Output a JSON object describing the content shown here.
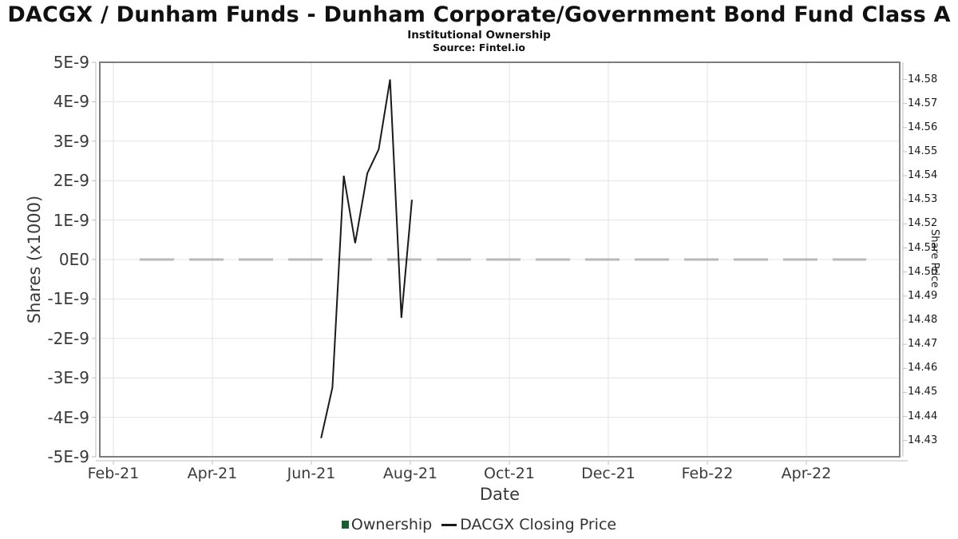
{
  "header": {
    "title": "DACGX / Dunham Funds - Dunham Corporate/Government Bond Fund Class A",
    "subtitle": "Institutional Ownership",
    "source": "Source: Fintel.io"
  },
  "chart_data": {
    "type": "line",
    "title": "DACGX / Dunham Funds - Dunham Corporate/Government Bond Fund Class A",
    "subtitle": "Institutional Ownership",
    "x_axis": {
      "label": "Date",
      "ticks": [
        {
          "date": "2021-02-01",
          "label": "Feb-21"
        },
        {
          "date": "2021-04-01",
          "label": "Apr-21"
        },
        {
          "date": "2021-06-01",
          "label": "Jun-21"
        },
        {
          "date": "2021-08-01",
          "label": "Aug-21"
        },
        {
          "date": "2021-10-01",
          "label": "Oct-21"
        },
        {
          "date": "2021-12-01",
          "label": "Dec-21"
        },
        {
          "date": "2022-02-01",
          "label": "Feb-22"
        },
        {
          "date": "2022-04-01",
          "label": "Apr-22"
        }
      ]
    },
    "left_axis": {
      "label": "Shares (x1000)",
      "tick_labels": [
        "5E-9",
        "4E-9",
        "3E-9",
        "2E-9",
        "1E-9",
        "0E0",
        "-1E-9",
        "-2E-9",
        "-3E-9",
        "-4E-9",
        "-5E-9"
      ],
      "range": [
        -5e-09,
        5e-09
      ],
      "grid": true
    },
    "right_axis": {
      "label": "Share Price",
      "tick_labels": [
        "14.58",
        "14.57",
        "14.56",
        "14.55",
        "14.54",
        "14.53",
        "14.52",
        "14.51",
        "14.50",
        "14.49",
        "14.48",
        "14.47",
        "14.46",
        "14.45",
        "14.44",
        "14.43"
      ],
      "range": [
        14.43,
        14.58
      ]
    },
    "series": [
      {
        "name": "Ownership",
        "type": "bar",
        "axis": "left",
        "color": "#1e5b32",
        "points": [],
        "note": "all ownership values are zero; appears as the dashed gray line at 0E0"
      },
      {
        "name": "DACGX Closing Price",
        "type": "line",
        "axis": "right",
        "color": "#1a1a1a",
        "points": [
          {
            "date": "2021-06-07",
            "price": 14.431
          },
          {
            "date": "2021-06-14",
            "price": 14.452
          },
          {
            "date": "2021-06-21",
            "price": 14.54
          },
          {
            "date": "2021-06-28",
            "price": 14.512
          },
          {
            "date": "2021-07-05",
            "price": 14.541
          },
          {
            "date": "2021-07-12",
            "price": 14.551
          },
          {
            "date": "2021-07-19",
            "price": 14.58
          },
          {
            "date": "2021-07-26",
            "price": 14.481
          },
          {
            "date": "2021-08-02",
            "price": 14.53
          }
        ]
      }
    ],
    "zero_line": {
      "value_label": "0E0",
      "style": "dashed",
      "color": "#b9b9b9"
    },
    "legend_position": "bottom"
  },
  "legend": {
    "items": [
      {
        "label": "Ownership",
        "swatch": "square",
        "color": "#1e5b32"
      },
      {
        "label": "DACGX Closing Price",
        "swatch": "line",
        "color": "#1a1a1a"
      }
    ]
  }
}
